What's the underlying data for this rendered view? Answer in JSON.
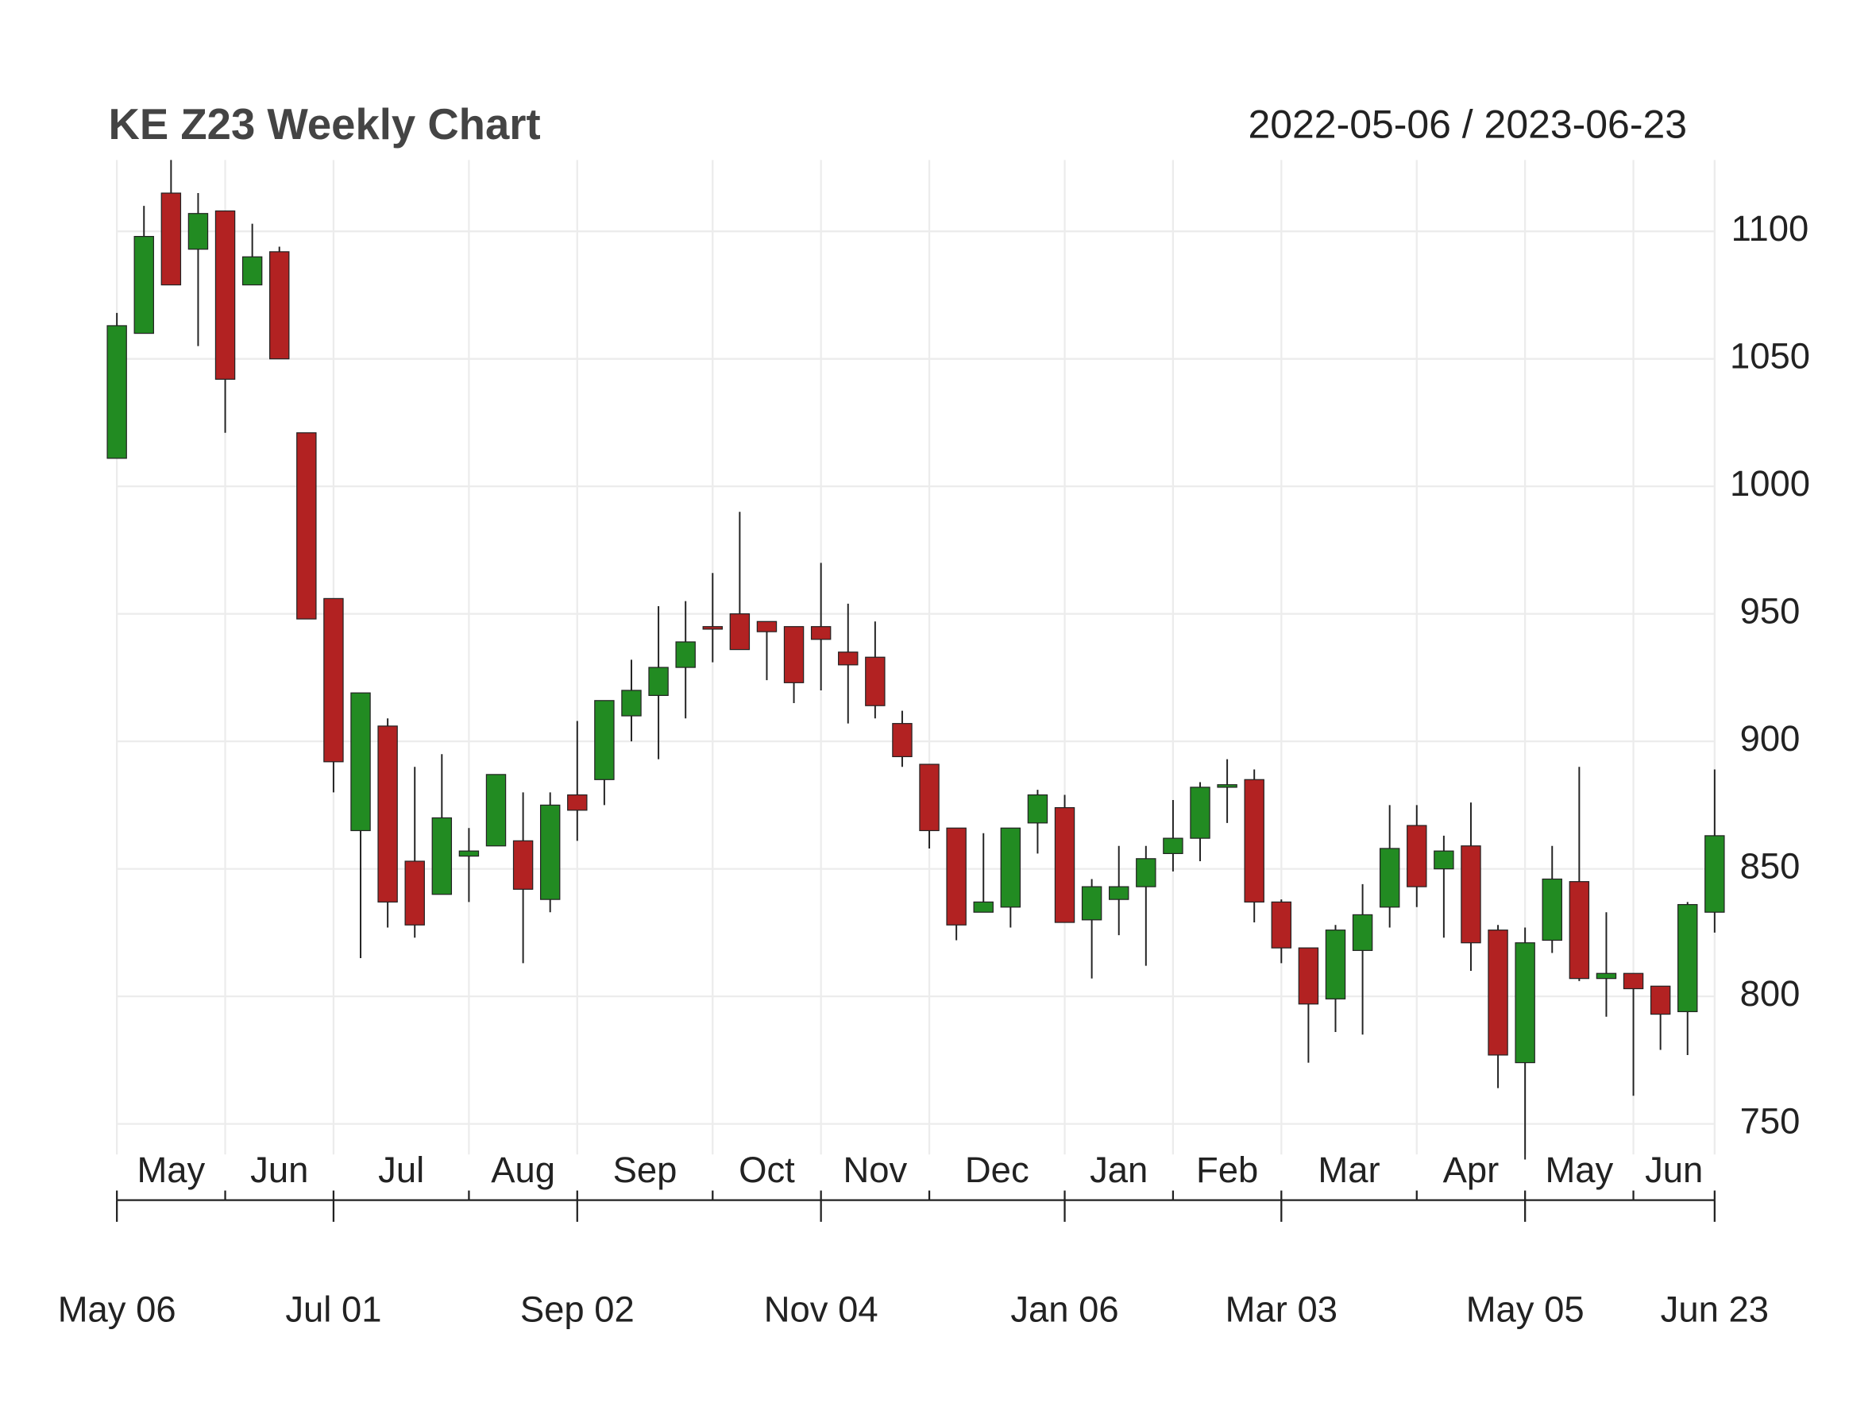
{
  "chart_data": {
    "type": "candlestick",
    "title": "KE Z23 Weekly Chart",
    "date_range": "2022-05-06 / 2023-06-23",
    "x": [
      "2022-05-06",
      "2022-05-13",
      "2022-05-20",
      "2022-05-27",
      "2022-06-03",
      "2022-06-10",
      "2022-06-17",
      "2022-06-24",
      "2022-07-01",
      "2022-07-08",
      "2022-07-15",
      "2022-07-22",
      "2022-07-29",
      "2022-08-05",
      "2022-08-12",
      "2022-08-19",
      "2022-08-26",
      "2022-09-02",
      "2022-09-09",
      "2022-09-16",
      "2022-09-23",
      "2022-09-30",
      "2022-10-07",
      "2022-10-14",
      "2022-10-21",
      "2022-10-28",
      "2022-11-04",
      "2022-11-11",
      "2022-11-18",
      "2022-11-25",
      "2022-12-02",
      "2022-12-09",
      "2022-12-16",
      "2022-12-23",
      "2022-12-30",
      "2023-01-06",
      "2023-01-13",
      "2023-01-20",
      "2023-01-27",
      "2023-02-03",
      "2023-02-10",
      "2023-02-17",
      "2023-02-24",
      "2023-03-03",
      "2023-03-10",
      "2023-03-17",
      "2023-03-24",
      "2023-03-31",
      "2023-04-07",
      "2023-04-14",
      "2023-04-21",
      "2023-04-28",
      "2023-05-05",
      "2023-05-12",
      "2023-05-19",
      "2023-05-26",
      "2023-06-02",
      "2023-06-09",
      "2023-06-16",
      "2023-06-23"
    ],
    "open": [
      1011,
      1060,
      1115,
      1093,
      1108,
      1079,
      1092,
      1021,
      956,
      865,
      906,
      853,
      840,
      855,
      859,
      861,
      838,
      879,
      885,
      910,
      918,
      929,
      945,
      950,
      947,
      945,
      945,
      935,
      933,
      907,
      891,
      866,
      833,
      835,
      868,
      874,
      830,
      838,
      843,
      856,
      862,
      882,
      885,
      837,
      819,
      799,
      818,
      835,
      867,
      850,
      859,
      826,
      774,
      822,
      845,
      807,
      809,
      804,
      794,
      833
    ],
    "high": [
      1068,
      1110,
      1128,
      1115,
      1108,
      1103,
      1094,
      1021,
      956,
      919,
      909,
      890,
      895,
      866,
      887,
      880,
      880,
      908,
      916,
      932,
      953,
      955,
      966,
      990,
      947,
      945,
      970,
      954,
      947,
      912,
      891,
      866,
      864,
      866,
      881,
      879,
      846,
      859,
      859,
      877,
      884,
      893,
      889,
      838,
      819,
      828,
      844,
      875,
      875,
      863,
      876,
      828,
      827,
      859,
      890,
      833,
      809,
      804,
      837,
      889
    ],
    "low": [
      1011,
      1060,
      1079,
      1055,
      1021,
      1079,
      1050,
      948,
      880,
      815,
      827,
      823,
      840,
      837,
      859,
      813,
      833,
      861,
      875,
      900,
      893,
      909,
      931,
      936,
      924,
      915,
      920,
      907,
      909,
      890,
      858,
      822,
      833,
      827,
      856,
      829,
      807,
      824,
      812,
      849,
      853,
      868,
      829,
      813,
      774,
      786,
      785,
      827,
      835,
      823,
      810,
      764,
      736,
      817,
      806,
      792,
      761,
      779,
      777,
      825
    ],
    "close": [
      1063,
      1098,
      1079,
      1107,
      1042,
      1090,
      1050,
      948,
      892,
      919,
      837,
      828,
      870,
      857,
      887,
      842,
      875,
      873,
      916,
      920,
      929,
      939,
      944,
      936,
      943,
      923,
      940,
      930,
      914,
      894,
      865,
      828,
      837,
      866,
      879,
      829,
      843,
      843,
      854,
      862,
      882,
      883,
      837,
      819,
      797,
      826,
      832,
      858,
      843,
      857,
      821,
      777,
      821,
      846,
      807,
      809,
      803,
      793,
      836,
      863
    ],
    "up_color": "#228b22",
    "down_color": "#b22222",
    "ylim": [
      738,
      1128
    ],
    "yticks": [
      750,
      800,
      850,
      900,
      950,
      1000,
      1050,
      1100
    ],
    "grid": true,
    "x_grid": [
      "2022-05-06",
      "2022-06-03",
      "2022-07-01",
      "2022-08-05",
      "2022-09-02",
      "2022-10-07",
      "2022-11-04",
      "2022-12-02",
      "2023-01-06",
      "2023-02-03",
      "2023-03-03",
      "2023-04-07",
      "2023-05-05",
      "2023-06-02",
      "2023-06-23"
    ],
    "x_month_labels": [
      "May",
      "Jun",
      "Jul",
      "Aug",
      "Sep",
      "Oct",
      "Nov",
      "Dec",
      "Jan",
      "Feb",
      "Mar",
      "Apr",
      "May",
      "Jun"
    ],
    "xticks": [
      {
        "value": "2022-05-06",
        "label": "May 06"
      },
      {
        "value": "2022-07-01",
        "label": "Jul 01"
      },
      {
        "value": "2022-09-02",
        "label": "Sep 02"
      },
      {
        "value": "2022-11-04",
        "label": "Nov 04"
      },
      {
        "value": "2023-01-06",
        "label": "Jan 06"
      },
      {
        "value": "2023-03-03",
        "label": "Mar 03"
      },
      {
        "value": "2023-05-05",
        "label": "May 05"
      },
      {
        "value": "2023-06-23",
        "label": "Jun 23"
      }
    ]
  }
}
